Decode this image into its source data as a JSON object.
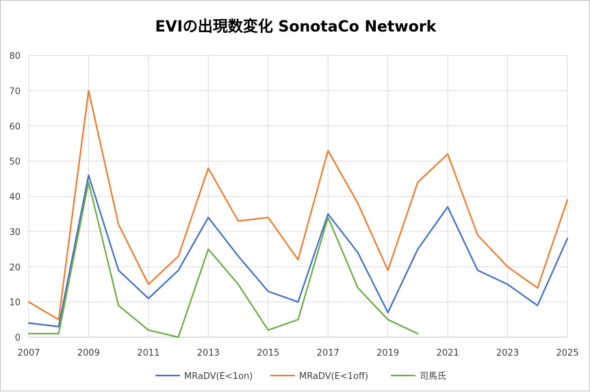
{
  "chart_data": {
    "type": "line",
    "title": "EVIの出現数変化 SonotaCo Network",
    "x": [
      2007,
      2008,
      2009,
      2010,
      2011,
      2012,
      2013,
      2014,
      2015,
      2016,
      2017,
      2018,
      2019,
      2020,
      2021,
      2022,
      2023,
      2024,
      2025
    ],
    "x_tick_labels": [
      "2007",
      "2009",
      "2011",
      "2013",
      "2015",
      "2017",
      "2019",
      "2021",
      "2023",
      "2025"
    ],
    "y_tick_labels": [
      "0",
      "10",
      "20",
      "30",
      "40",
      "50",
      "60",
      "70",
      "80"
    ],
    "xlim": [
      2007,
      2025
    ],
    "ylim": [
      0,
      80
    ],
    "grid": true,
    "legend_position": "bottom",
    "series": [
      {
        "name": "MRaDV(E<1on)",
        "color": "#4472c4",
        "values": [
          4,
          3,
          46,
          19,
          11,
          19,
          34,
          23,
          13,
          10,
          35,
          24,
          7,
          25,
          37,
          19,
          15,
          9,
          28
        ]
      },
      {
        "name": "MRaDV(E<1off)",
        "color": "#ed7d31",
        "values": [
          10,
          5,
          70,
          32,
          15,
          23,
          48,
          33,
          34,
          22,
          53,
          38,
          19,
          44,
          52,
          29,
          20,
          14,
          39
        ]
      },
      {
        "name": "司馬氏",
        "color": "#70ad47",
        "values": [
          1,
          1,
          44,
          9,
          2,
          0,
          25,
          15,
          2,
          5,
          34,
          14,
          5,
          1,
          null,
          null,
          null,
          null,
          null
        ]
      }
    ]
  }
}
